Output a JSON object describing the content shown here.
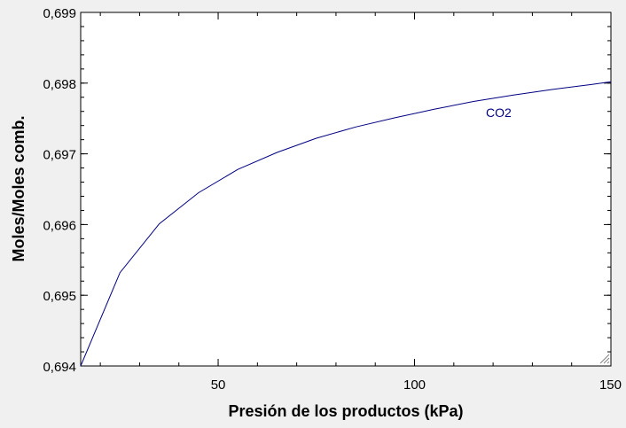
{
  "chart_data": {
    "type": "line",
    "title": "",
    "xlabel": "Presión de los productos  (kPa)",
    "ylabel": "Moles/Moles comb.",
    "xlim": [
      15,
      150
    ],
    "ylim": [
      0.694,
      0.699
    ],
    "x_ticks": [
      {
        "value": 50,
        "label": "50"
      },
      {
        "value": 100,
        "label": "100"
      },
      {
        "value": 150,
        "label": "150"
      }
    ],
    "y_ticks": [
      {
        "value": 0.694,
        "label": "0,694"
      },
      {
        "value": 0.695,
        "label": "0,695"
      },
      {
        "value": 0.696,
        "label": "0,696"
      },
      {
        "value": 0.697,
        "label": "0,697"
      },
      {
        "value": 0.698,
        "label": "0,698"
      },
      {
        "value": 0.699,
        "label": "0,699"
      }
    ],
    "x_minor_step": 10,
    "y_minor_step": 0.0002,
    "grid": false,
    "series": [
      {
        "name": "CO2",
        "color": "#000080",
        "x": [
          15,
          25,
          35,
          45,
          55,
          65,
          75,
          85,
          95,
          105,
          115,
          125,
          135,
          145,
          150
        ],
        "y": [
          0.694,
          0.69532,
          0.69601,
          0.69645,
          0.69678,
          0.69702,
          0.69722,
          0.69738,
          0.69751,
          0.69763,
          0.69774,
          0.69783,
          0.69791,
          0.69798,
          0.69802
        ]
      }
    ]
  }
}
